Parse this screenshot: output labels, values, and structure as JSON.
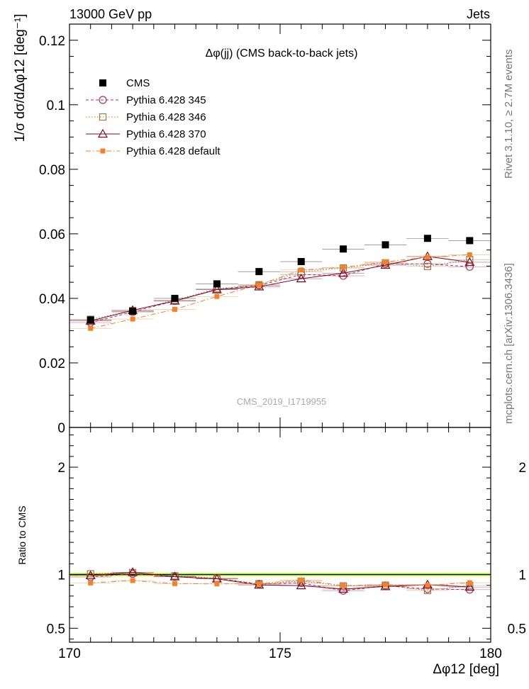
{
  "header": {
    "left": "13000 GeV pp",
    "right": "Jets"
  },
  "side_labels": {
    "rivet": "Rivet 3.1.10, ≥ 2.7M events",
    "mcplots": "mcplots.cern.ch [arXiv:1306.3436]"
  },
  "analysis_tag": "CMS_2019_I1719955",
  "colors": {
    "cms": "#000000",
    "p345": "#b0305a",
    "p346": "#9a7c3e",
    "p370": "#7a0a28",
    "pdefault": "#f4802c",
    "band_outer": "#f5f57a",
    "band_inner": "#3cd23c"
  },
  "chart_data": [
    {
      "type": "scatter",
      "panel": "main",
      "title": "Δφ(jj) (CMS back-to-back jets)",
      "xlabel": "Δφ12 [deg]",
      "ylabel": "1/σ dσ/dΔφ12 [deg⁻¹]",
      "xlim": [
        170,
        180
      ],
      "ylim": [
        0,
        0.125
      ],
      "y_ticks": [
        "0",
        "0.02",
        "0.04",
        "0.06",
        "0.08",
        "0.1",
        "0.12"
      ],
      "x": [
        170.5,
        171.5,
        172.5,
        173.5,
        174.5,
        175.5,
        176.5,
        177.5,
        178.5,
        179.5
      ],
      "series": [
        {
          "name": "CMS",
          "key": "cms",
          "marker": "square-filled",
          "line": "none",
          "values": [
            0.0333,
            0.036,
            0.04,
            0.0445,
            0.0483,
            0.0514,
            0.0553,
            0.0566,
            0.0586,
            0.0579
          ]
        },
        {
          "name": "Pythia 6.428 345",
          "key": "p345",
          "marker": "circle-open",
          "line": "dashed",
          "values": [
            0.0325,
            0.0358,
            0.0392,
            0.0428,
            0.044,
            0.0474,
            0.047,
            0.0507,
            0.0507,
            0.0498
          ]
        },
        {
          "name": "Pythia 6.428 346",
          "key": "p346",
          "marker": "square-open",
          "line": "dotted",
          "values": [
            0.0335,
            0.0362,
            0.0395,
            0.043,
            0.0442,
            0.0482,
            0.0494,
            0.051,
            0.0499,
            0.052
          ]
        },
        {
          "name": "Pythia 6.428 370",
          "key": "p370",
          "marker": "triangle-open",
          "line": "solid",
          "values": [
            0.033,
            0.0363,
            0.0392,
            0.0427,
            0.0436,
            0.0461,
            0.0478,
            0.0503,
            0.053,
            0.0512
          ]
        },
        {
          "name": "Pythia 6.428 default",
          "key": "pdefault",
          "marker": "square-small",
          "line": "dashdot",
          "values": [
            0.0307,
            0.0336,
            0.0366,
            0.0406,
            0.0442,
            0.0488,
            0.0496,
            0.0513,
            0.0528,
            0.0535
          ]
        }
      ]
    },
    {
      "type": "line",
      "panel": "ratio",
      "ylabel": "Ratio to CMS",
      "xlim": [
        170,
        180
      ],
      "ylim": [
        0.37,
        2.37
      ],
      "y_ticks": [
        "0.5",
        "1",
        "2"
      ],
      "x_ticks": [
        "170",
        "175",
        "180"
      ],
      "x": [
        170.5,
        171.5,
        172.5,
        173.5,
        174.5,
        175.5,
        176.5,
        177.5,
        178.5,
        179.5
      ],
      "band_rel_err": 0.02,
      "band_rel_err_inner": 0.008,
      "series": [
        {
          "name": "Pythia 6.428 345",
          "key": "p345",
          "marker": "circle-open",
          "line": "dashed",
          "values": [
            0.977,
            1.007,
            0.98,
            0.963,
            0.911,
            0.922,
            0.85,
            0.896,
            0.866,
            0.86
          ]
        },
        {
          "name": "Pythia 6.428 346",
          "key": "p346",
          "marker": "square-open",
          "line": "dotted",
          "values": [
            1.007,
            1.018,
            0.988,
            0.967,
            0.915,
            0.938,
            0.894,
            0.901,
            0.852,
            0.898
          ]
        },
        {
          "name": "Pythia 6.428 370",
          "key": "p370",
          "marker": "triangle-open",
          "line": "solid",
          "values": [
            0.991,
            1.021,
            0.98,
            0.96,
            0.903,
            0.897,
            0.865,
            0.889,
            0.905,
            0.884
          ]
        },
        {
          "name": "Pythia 6.428 default",
          "key": "pdefault",
          "marker": "square-small",
          "line": "dashdot",
          "values": [
            0.922,
            0.944,
            0.916,
            0.913,
            0.915,
            0.949,
            0.897,
            0.906,
            0.901,
            0.924
          ]
        }
      ]
    }
  ]
}
